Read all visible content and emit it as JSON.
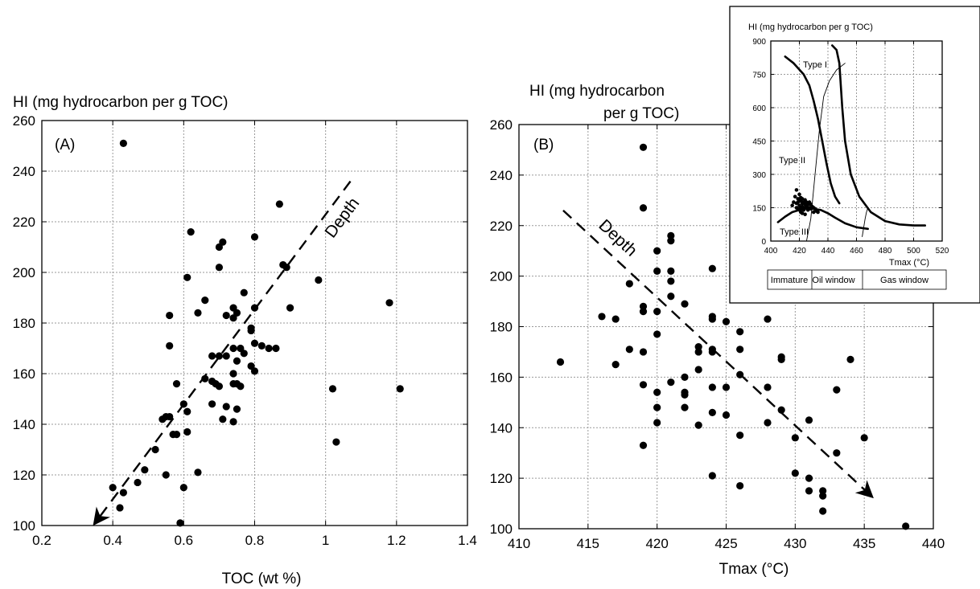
{
  "chart_data": [
    {
      "type": "scatter",
      "panel_label": "(A)",
      "ylabel": "HI (mg hydrocarbon per g TOC)",
      "xlabel": "TOC (wt %)",
      "xlim": [
        0.2,
        1.4
      ],
      "ylim": [
        100,
        260
      ],
      "xticks": [
        0.2,
        0.4,
        0.6,
        0.8,
        1,
        1.2,
        1.4
      ],
      "yticks": [
        100,
        120,
        140,
        160,
        180,
        200,
        220,
        240,
        260
      ],
      "grid": true,
      "annotation": {
        "text": "Depth",
        "arrow_from": [
          1.07,
          236
        ],
        "arrow_to": [
          0.35,
          101
        ]
      },
      "points": [
        [
          0.43,
          251
        ],
        [
          0.87,
          227
        ],
        [
          0.62,
          216
        ],
        [
          0.71,
          212
        ],
        [
          0.8,
          214
        ],
        [
          0.7,
          210
        ],
        [
          0.7,
          202
        ],
        [
          0.88,
          203
        ],
        [
          0.89,
          202
        ],
        [
          0.61,
          198
        ],
        [
          0.98,
          197
        ],
        [
          0.77,
          192
        ],
        [
          0.66,
          189
        ],
        [
          0.56,
          183
        ],
        [
          0.64,
          184
        ],
        [
          0.72,
          183
        ],
        [
          0.74,
          186
        ],
        [
          0.75,
          184
        ],
        [
          0.74,
          182
        ],
        [
          0.8,
          186
        ],
        [
          0.9,
          186
        ],
        [
          1.18,
          188
        ],
        [
          0.79,
          178
        ],
        [
          0.79,
          177
        ],
        [
          0.8,
          172
        ],
        [
          0.82,
          171
        ],
        [
          0.84,
          170
        ],
        [
          0.86,
          170
        ],
        [
          0.56,
          171
        ],
        [
          0.74,
          170
        ],
        [
          0.76,
          170
        ],
        [
          0.77,
          168
        ],
        [
          0.68,
          167
        ],
        [
          0.7,
          167
        ],
        [
          0.72,
          167
        ],
        [
          0.75,
          165
        ],
        [
          0.79,
          163
        ],
        [
          0.8,
          161
        ],
        [
          0.74,
          160
        ],
        [
          0.66,
          158
        ],
        [
          0.68,
          157
        ],
        [
          0.69,
          156
        ],
        [
          0.58,
          156
        ],
        [
          0.7,
          155
        ],
        [
          0.74,
          156
        ],
        [
          0.75,
          156
        ],
        [
          0.76,
          155
        ],
        [
          1.02,
          154
        ],
        [
          1.21,
          154
        ],
        [
          0.6,
          148
        ],
        [
          0.68,
          148
        ],
        [
          0.72,
          147
        ],
        [
          0.61,
          145
        ],
        [
          0.75,
          146
        ],
        [
          0.71,
          142
        ],
        [
          0.74,
          141
        ],
        [
          0.55,
          143
        ],
        [
          0.56,
          143
        ],
        [
          0.54,
          142
        ],
        [
          0.57,
          136
        ],
        [
          0.58,
          136
        ],
        [
          0.61,
          137
        ],
        [
          1.03,
          133
        ],
        [
          0.52,
          130
        ],
        [
          0.49,
          122
        ],
        [
          0.64,
          121
        ],
        [
          0.55,
          120
        ],
        [
          0.47,
          117
        ],
        [
          0.4,
          115
        ],
        [
          0.43,
          113
        ],
        [
          0.6,
          115
        ],
        [
          0.42,
          107
        ],
        [
          0.59,
          101
        ]
      ]
    },
    {
      "type": "scatter",
      "panel_label": "(B)",
      "ylabel": "HI (mg hydrocarbon\nper g TOC)",
      "xlabel": "Tmax (°C)",
      "xlim": [
        410,
        440
      ],
      "ylim": [
        100,
        260
      ],
      "xticks": [
        410,
        415,
        420,
        425,
        430,
        435,
        440
      ],
      "yticks": [
        100,
        120,
        140,
        160,
        180,
        200,
        220,
        240,
        260
      ],
      "grid": true,
      "annotation": {
        "text": "Depth",
        "arrow_from": [
          413.2,
          226
        ],
        "arrow_to": [
          435.5,
          113
        ]
      },
      "points": [
        [
          419,
          251
        ],
        [
          419,
          227
        ],
        [
          421,
          216
        ],
        [
          421,
          214
        ],
        [
          420,
          210
        ],
        [
          424,
          203
        ],
        [
          420,
          202
        ],
        [
          421,
          202
        ],
        [
          421,
          198
        ],
        [
          418,
          197
        ],
        [
          421,
          192
        ],
        [
          422,
          189
        ],
        [
          419,
          188
        ],
        [
          419,
          186
        ],
        [
          420,
          186
        ],
        [
          416,
          184
        ],
        [
          417,
          183
        ],
        [
          424,
          184
        ],
        [
          424,
          183
        ],
        [
          425,
          182
        ],
        [
          428,
          183
        ],
        [
          426,
          178
        ],
        [
          420,
          177
        ],
        [
          418,
          171
        ],
        [
          419,
          170
        ],
        [
          423,
          172
        ],
        [
          423,
          170
        ],
        [
          424,
          170
        ],
        [
          424,
          171
        ],
        [
          426,
          171
        ],
        [
          429,
          168
        ],
        [
          429,
          167
        ],
        [
          434,
          167
        ],
        [
          413,
          166
        ],
        [
          417,
          165
        ],
        [
          423,
          163
        ],
        [
          426,
          161
        ],
        [
          422,
          160
        ],
        [
          421,
          158
        ],
        [
          419,
          157
        ],
        [
          424,
          156
        ],
        [
          425,
          156
        ],
        [
          428,
          156
        ],
        [
          420,
          154
        ],
        [
          422,
          154
        ],
        [
          422,
          153
        ],
        [
          433,
          155
        ],
        [
          420,
          148
        ],
        [
          422,
          148
        ],
        [
          429,
          147
        ],
        [
          424,
          146
        ],
        [
          425,
          145
        ],
        [
          420,
          142
        ],
        [
          423,
          141
        ],
        [
          428,
          142
        ],
        [
          431,
          143
        ],
        [
          426,
          137
        ],
        [
          430,
          136
        ],
        [
          435,
          136
        ],
        [
          419,
          133
        ],
        [
          433,
          130
        ],
        [
          430,
          122
        ],
        [
          431,
          120
        ],
        [
          424,
          121
        ],
        [
          426,
          117
        ],
        [
          431,
          115
        ],
        [
          432,
          115
        ],
        [
          432,
          113
        ],
        [
          432,
          107
        ],
        [
          438,
          101
        ]
      ]
    },
    {
      "type": "line",
      "inset": true,
      "ylabel": "HI (mg hydrocarbon per g TOC)",
      "xlabel": "Tmax (°C)",
      "xlim": [
        400,
        520
      ],
      "ylim": [
        0,
        900
      ],
      "xticks": [
        400,
        420,
        440,
        460,
        480,
        500,
        520
      ],
      "yticks": [
        0,
        150,
        300,
        450,
        600,
        750,
        900
      ],
      "grid": true,
      "curve_labels": [
        "Type I",
        "Type II",
        "Type III"
      ],
      "series": [
        {
          "style": "thick",
          "x": [
            410,
            416,
            423,
            427,
            430,
            433,
            436,
            439,
            442,
            445,
            448
          ],
          "y": [
            830,
            800,
            750,
            700,
            630,
            550,
            450,
            350,
            260,
            200,
            170
          ]
        },
        {
          "style": "thick",
          "x": [
            443,
            446,
            448,
            449,
            450,
            452,
            456,
            462,
            470,
            480,
            490,
            500,
            508
          ],
          "y": [
            880,
            860,
            800,
            700,
            600,
            450,
            300,
            200,
            130,
            90,
            75,
            70,
            70
          ]
        },
        {
          "style": "thick",
          "x": [
            405,
            410,
            415,
            420,
            425,
            430,
            435,
            440,
            445,
            452,
            460,
            468
          ],
          "y": [
            85,
            110,
            130,
            140,
            145,
            145,
            140,
            125,
            105,
            80,
            62,
            55
          ]
        },
        {
          "style": "thin",
          "x": [
            425,
            428,
            431,
            434,
            437,
            441,
            446,
            452
          ],
          "y": [
            0,
            100,
            300,
            500,
            650,
            720,
            770,
            800
          ]
        },
        {
          "style": "thin",
          "x": [
            464,
            465,
            466,
            467,
            468
          ],
          "y": [
            20,
            60,
            100,
            130,
            150
          ]
        }
      ],
      "points": [
        [
          415,
          160
        ],
        [
          416,
          175
        ],
        [
          417,
          200
        ],
        [
          418,
          230
        ],
        [
          418,
          150
        ],
        [
          419,
          190
        ],
        [
          419,
          175
        ],
        [
          419,
          145
        ],
        [
          420,
          210
        ],
        [
          420,
          185
        ],
        [
          420,
          160
        ],
        [
          421,
          195
        ],
        [
          421,
          180
        ],
        [
          421,
          150
        ],
        [
          421,
          130
        ],
        [
          422,
          190
        ],
        [
          422,
          170
        ],
        [
          422,
          155
        ],
        [
          423,
          175
        ],
        [
          423,
          150
        ],
        [
          423,
          140
        ],
        [
          424,
          185
        ],
        [
          424,
          165
        ],
        [
          424,
          150
        ],
        [
          424,
          120
        ],
        [
          425,
          175
        ],
        [
          425,
          155
        ],
        [
          426,
          165
        ],
        [
          426,
          140
        ],
        [
          427,
          175
        ],
        [
          427,
          150
        ],
        [
          428,
          165
        ],
        [
          428,
          145
        ],
        [
          429,
          155
        ],
        [
          430,
          150
        ],
        [
          430,
          130
        ],
        [
          431,
          145
        ],
        [
          432,
          135
        ],
        [
          433,
          130
        ],
        [
          418,
          170
        ],
        [
          420,
          140
        ],
        [
          422,
          125
        ]
      ],
      "maturity_zones": [
        "Immature",
        "Oil window",
        "Gas window"
      ]
    }
  ]
}
